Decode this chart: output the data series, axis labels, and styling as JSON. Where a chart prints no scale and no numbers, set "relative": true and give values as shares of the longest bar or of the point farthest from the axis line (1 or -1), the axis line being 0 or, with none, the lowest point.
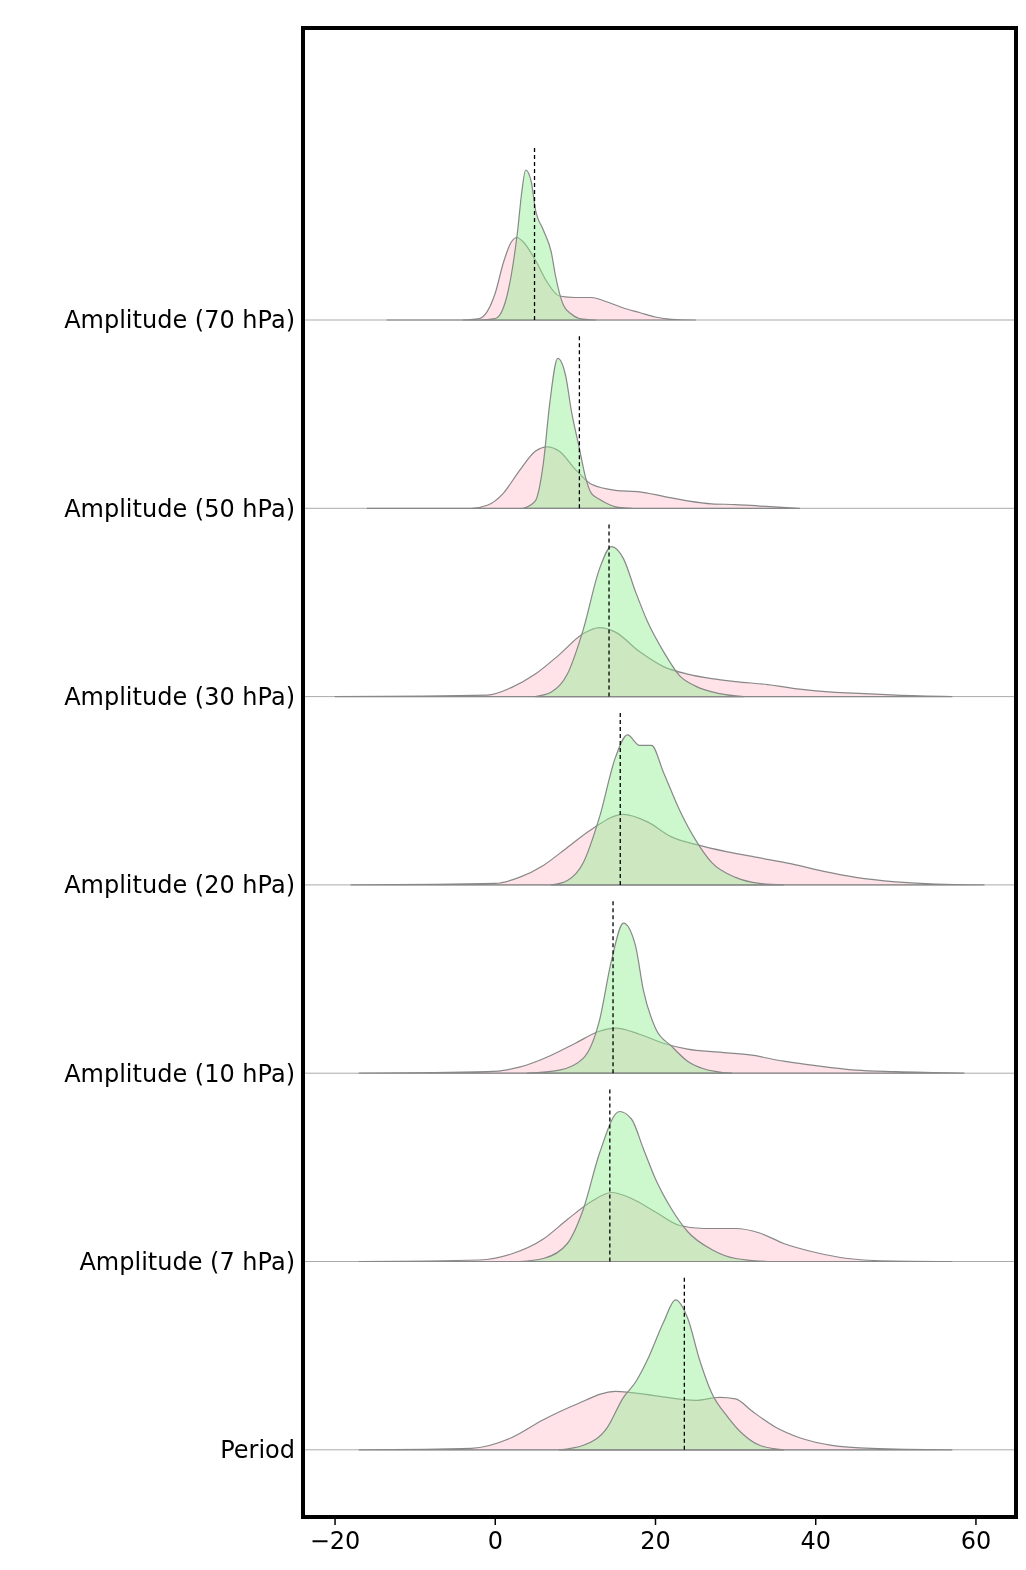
{
  "chart_data": [
    {
      "type": "area",
      "relative": true,
      "ylabel": "Amplitude (70 hPa)",
      "xlim": [
        -24,
        65
      ],
      "tick_labels": false,
      "ref_lines": [
        {
          "axis": "x",
          "value": 4.9,
          "line_style": "dashed",
          "color": "#000000"
        }
      ],
      "series": [
        {
          "color": "#ffc0cb",
          "x": [
            -4,
            -2,
            0,
            1,
            2,
            2.7,
            3.5,
            5,
            6.5,
            8,
            10,
            12,
            14,
            16,
            18,
            20,
            22,
            25
          ],
          "values": [
            0,
            0.01,
            0.18,
            0.38,
            0.52,
            0.55,
            0.52,
            0.4,
            0.25,
            0.16,
            0.15,
            0.15,
            0.12,
            0.08,
            0.05,
            0.02,
            0.005,
            0
          ]
        },
        {
          "color": "#90ee90",
          "x": [
            -13.5,
            -2,
            0,
            1,
            2,
            2.8,
            3.3,
            3.8,
            4.5,
            5,
            6,
            7,
            7.5,
            8.5,
            9.5,
            10.5,
            12.5
          ],
          "values": [
            0,
            0,
            0.01,
            0.08,
            0.3,
            0.6,
            0.85,
            1,
            0.92,
            0.74,
            0.6,
            0.45,
            0.3,
            0.1,
            0.04,
            0.01,
            0
          ]
        }
      ]
    },
    {
      "type": "area",
      "relative": true,
      "ylabel": "Amplitude (50 hPa)",
      "xlim": [
        -24,
        65
      ],
      "tick_labels": false,
      "ref_lines": [
        {
          "axis": "x",
          "value": 10.5,
          "line_style": "dashed",
          "color": "#000000"
        }
      ],
      "series": [
        {
          "color": "#ffc0cb",
          "x": [
            -16,
            -3,
            -1,
            1,
            3,
            5,
            6.5,
            8,
            10,
            12,
            15,
            18,
            21,
            24,
            27,
            30,
            33,
            38
          ],
          "values": [
            0,
            0,
            0.02,
            0.1,
            0.25,
            0.38,
            0.41,
            0.38,
            0.26,
            0.16,
            0.12,
            0.11,
            0.08,
            0.05,
            0.03,
            0.025,
            0.015,
            0
          ]
        },
        {
          "color": "#90ee90",
          "x": [
            3.5,
            5,
            6,
            6.8,
            7.8,
            8.8,
            9.5,
            10.5,
            11.3,
            12,
            13,
            14,
            15,
            17
          ],
          "values": [
            0,
            0.05,
            0.3,
            0.7,
            1,
            0.88,
            0.65,
            0.4,
            0.2,
            0.1,
            0.06,
            0.03,
            0.01,
            0
          ]
        }
      ]
    },
    {
      "type": "area",
      "relative": true,
      "ylabel": "Amplitude (30 hPa)",
      "xlim": [
        -24,
        65
      ],
      "tick_labels": false,
      "ref_lines": [
        {
          "axis": "x",
          "value": 14.2,
          "line_style": "dashed",
          "color": "#000000"
        }
      ],
      "series": [
        {
          "color": "#ffc0cb",
          "x": [
            -20,
            -1,
            2,
            5,
            8,
            11,
            13,
            15,
            18,
            21,
            24,
            27,
            30,
            34,
            38,
            42,
            46,
            50,
            57
          ],
          "values": [
            0,
            0.01,
            0.06,
            0.15,
            0.28,
            0.42,
            0.46,
            0.43,
            0.3,
            0.2,
            0.15,
            0.12,
            0.1,
            0.08,
            0.05,
            0.03,
            0.02,
            0.01,
            0
          ]
        },
        {
          "color": "#90ee90",
          "x": [
            5,
            7,
            9,
            11,
            13,
            14.5,
            16,
            17.5,
            19,
            21,
            23,
            25,
            28,
            31
          ],
          "values": [
            0,
            0.03,
            0.15,
            0.45,
            0.85,
            1,
            0.92,
            0.7,
            0.5,
            0.3,
            0.14,
            0.07,
            0.02,
            0
          ]
        }
      ]
    },
    {
      "type": "area",
      "relative": true,
      "ylabel": "Amplitude (20 hPa)",
      "xlim": [
        -24,
        65
      ],
      "tick_labels": false,
      "ref_lines": [
        {
          "axis": "x",
          "value": 15.6,
          "line_style": "dashed",
          "color": "#000000"
        }
      ],
      "series": [
        {
          "color": "#ffc0cb",
          "x": [
            -18,
            0,
            3,
            6,
            9,
            12,
            16,
            19,
            22,
            25,
            29,
            33,
            37,
            41,
            45,
            50,
            55,
            61
          ],
          "values": [
            0,
            0.01,
            0.05,
            0.13,
            0.25,
            0.37,
            0.47,
            0.42,
            0.32,
            0.27,
            0.22,
            0.18,
            0.14,
            0.09,
            0.05,
            0.02,
            0.005,
            0
          ]
        },
        {
          "color": "#90ee90",
          "x": [
            7,
            9,
            11,
            13,
            15,
            16.5,
            18,
            19.5,
            21,
            23,
            25,
            27,
            30,
            33,
            36
          ],
          "values": [
            0,
            0.03,
            0.15,
            0.45,
            0.85,
            1,
            0.93,
            0.93,
            0.75,
            0.5,
            0.3,
            0.15,
            0.05,
            0.01,
            0
          ]
        }
      ]
    },
    {
      "type": "area",
      "relative": true,
      "ylabel": "Amplitude (10 hPa)",
      "xlim": [
        -24,
        65
      ],
      "tick_labels": false,
      "ref_lines": [
        {
          "axis": "x",
          "value": 14.7,
          "line_style": "dashed",
          "color": "#000000"
        }
      ],
      "series": [
        {
          "color": "#ffc0cb",
          "x": [
            -17,
            -1,
            3,
            7,
            10,
            13,
            15,
            18,
            21,
            24,
            28,
            32,
            36,
            40,
            45,
            50,
            58.5
          ],
          "values": [
            0,
            0.01,
            0.04,
            0.12,
            0.2,
            0.28,
            0.3,
            0.26,
            0.2,
            0.16,
            0.14,
            0.12,
            0.08,
            0.05,
            0.02,
            0.01,
            0
          ]
        },
        {
          "color": "#90ee90",
          "x": [
            4,
            8,
            11,
            13,
            14.5,
            16,
            17.5,
            18.5,
            20,
            22,
            24,
            26,
            29.5
          ],
          "values": [
            0,
            0.02,
            0.1,
            0.35,
            0.75,
            1,
            0.85,
            0.55,
            0.3,
            0.18,
            0.08,
            0.03,
            0
          ]
        }
      ]
    },
    {
      "type": "area",
      "relative": true,
      "ylabel": "Amplitude (7 hPa)",
      "xlim": [
        -24,
        65
      ],
      "tick_labels": false,
      "ref_lines": [
        {
          "axis": "x",
          "value": 14.3,
          "line_style": "dashed",
          "color": "#000000"
        }
      ],
      "series": [
        {
          "color": "#ffc0cb",
          "x": [
            -17,
            -2,
            2,
            6,
            9,
            12,
            14.5,
            17,
            20,
            23,
            26,
            30,
            33,
            36,
            40,
            44,
            48,
            57
          ],
          "values": [
            0,
            0.01,
            0.05,
            0.15,
            0.28,
            0.4,
            0.46,
            0.42,
            0.33,
            0.24,
            0.22,
            0.22,
            0.19,
            0.12,
            0.06,
            0.02,
            0.005,
            0
          ]
        },
        {
          "color": "#90ee90",
          "x": [
            3,
            6,
            9,
            11,
            13,
            15.5,
            17,
            18.5,
            20,
            22,
            24,
            27,
            30,
            34
          ],
          "values": [
            0,
            0.02,
            0.12,
            0.35,
            0.72,
            1,
            0.95,
            0.75,
            0.55,
            0.35,
            0.2,
            0.08,
            0.02,
            0
          ]
        }
      ]
    },
    {
      "type": "area",
      "relative": true,
      "ylabel": "Period",
      "xlim": [
        -24,
        65
      ],
      "xticks": [
        -20,
        0,
        20,
        40,
        60
      ],
      "tick_labels": "x",
      "ref_lines": [
        {
          "axis": "x",
          "value": 23.6,
          "line_style": "dashed",
          "color": "#000000"
        }
      ],
      "series": [
        {
          "color": "#ffc0cb",
          "x": [
            -17,
            -3,
            2,
            6,
            10,
            15,
            20,
            25,
            28,
            30,
            32,
            35,
            38,
            42,
            47,
            57
          ],
          "values": [
            0,
            0.01,
            0.08,
            0.2,
            0.3,
            0.39,
            0.36,
            0.33,
            0.35,
            0.34,
            0.26,
            0.15,
            0.08,
            0.03,
            0.01,
            0
          ]
        },
        {
          "color": "#90ee90",
          "x": [
            8,
            11,
            14,
            16,
            17.5,
            19,
            21,
            22.5,
            24,
            25.5,
            27,
            29,
            31,
            33,
            36
          ],
          "values": [
            0,
            0.03,
            0.15,
            0.35,
            0.45,
            0.6,
            0.85,
            1,
            0.88,
            0.6,
            0.38,
            0.22,
            0.1,
            0.03,
            0
          ]
        }
      ]
    }
  ]
}
